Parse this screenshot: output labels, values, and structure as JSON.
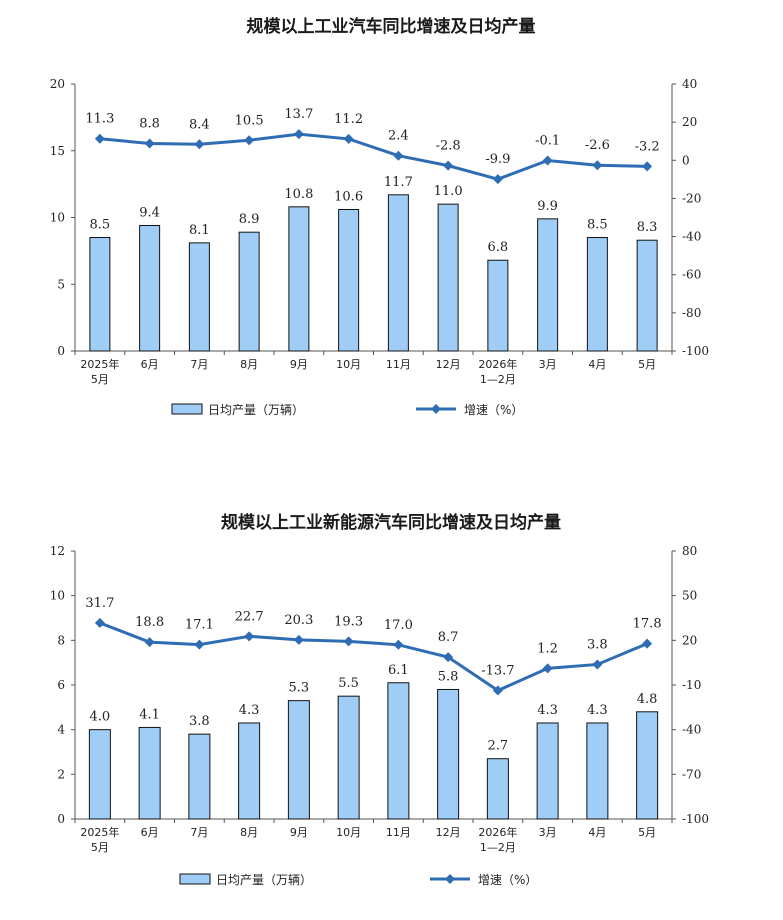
{
  "chart_data": [
    {
      "type": "bar+line",
      "title": "规模以上工业汽车同比增速及日均产量",
      "categories": [
        [
          "2025年",
          "5月"
        ],
        [
          "6月"
        ],
        [
          "7月"
        ],
        [
          "8月"
        ],
        [
          "9月"
        ],
        [
          "10月"
        ],
        [
          "11月"
        ],
        [
          "12月"
        ],
        [
          "2026年",
          "1—2月"
        ],
        [
          "3月"
        ],
        [
          "4月"
        ],
        [
          "5月"
        ]
      ],
      "bar_series": {
        "name": "日均产量（万辆）",
        "values": [
          8.5,
          9.4,
          8.1,
          8.9,
          10.8,
          10.6,
          11.7,
          11.0,
          6.8,
          9.9,
          8.5,
          8.3
        ],
        "color": "#9fcdf6"
      },
      "line_series": {
        "name": "增速（%）",
        "values": [
          11.3,
          8.8,
          8.4,
          10.5,
          13.7,
          11.2,
          2.4,
          -2.8,
          -9.9,
          -0.1,
          -2.6,
          -3.2
        ],
        "color": "#2e6db4"
      },
      "y_left": {
        "min": 0,
        "max": 20,
        "ticks": [
          0,
          5,
          10,
          15,
          20
        ]
      },
      "y_right": {
        "min": -100,
        "max": 40,
        "ticks": [
          -100,
          -80,
          -60,
          -40,
          -20,
          0,
          20,
          40
        ]
      },
      "legend_position": "bottom"
    },
    {
      "type": "bar+line",
      "title": "规模以上工业新能源汽车同比增速及日均产量",
      "categories": [
        [
          "2025年",
          "5月"
        ],
        [
          "6月"
        ],
        [
          "7月"
        ],
        [
          "8月"
        ],
        [
          "9月"
        ],
        [
          "10月"
        ],
        [
          "11月"
        ],
        [
          "12月"
        ],
        [
          "2026年",
          "1—2月"
        ],
        [
          "3月"
        ],
        [
          "4月"
        ],
        [
          "5月"
        ]
      ],
      "bar_series": {
        "name": "日均产量（万辆）",
        "values": [
          4.0,
          4.1,
          3.8,
          4.3,
          5.3,
          5.5,
          6.1,
          5.8,
          2.7,
          4.3,
          4.3,
          4.8
        ],
        "color": "#9fcdf6"
      },
      "line_series": {
        "name": "增速（%）",
        "values": [
          31.7,
          18.8,
          17.1,
          22.7,
          20.3,
          19.3,
          17.0,
          8.7,
          -13.7,
          1.2,
          3.8,
          17.8
        ],
        "color": "#2e6db4"
      },
      "y_left": {
        "min": 0,
        "max": 12,
        "ticks": [
          0,
          2,
          4,
          6,
          8,
          10,
          12
        ]
      },
      "y_right": {
        "min": -100,
        "max": 80,
        "ticks": [
          -100,
          -70,
          -40,
          -10,
          20,
          50,
          80
        ]
      },
      "legend_position": "bottom"
    }
  ]
}
